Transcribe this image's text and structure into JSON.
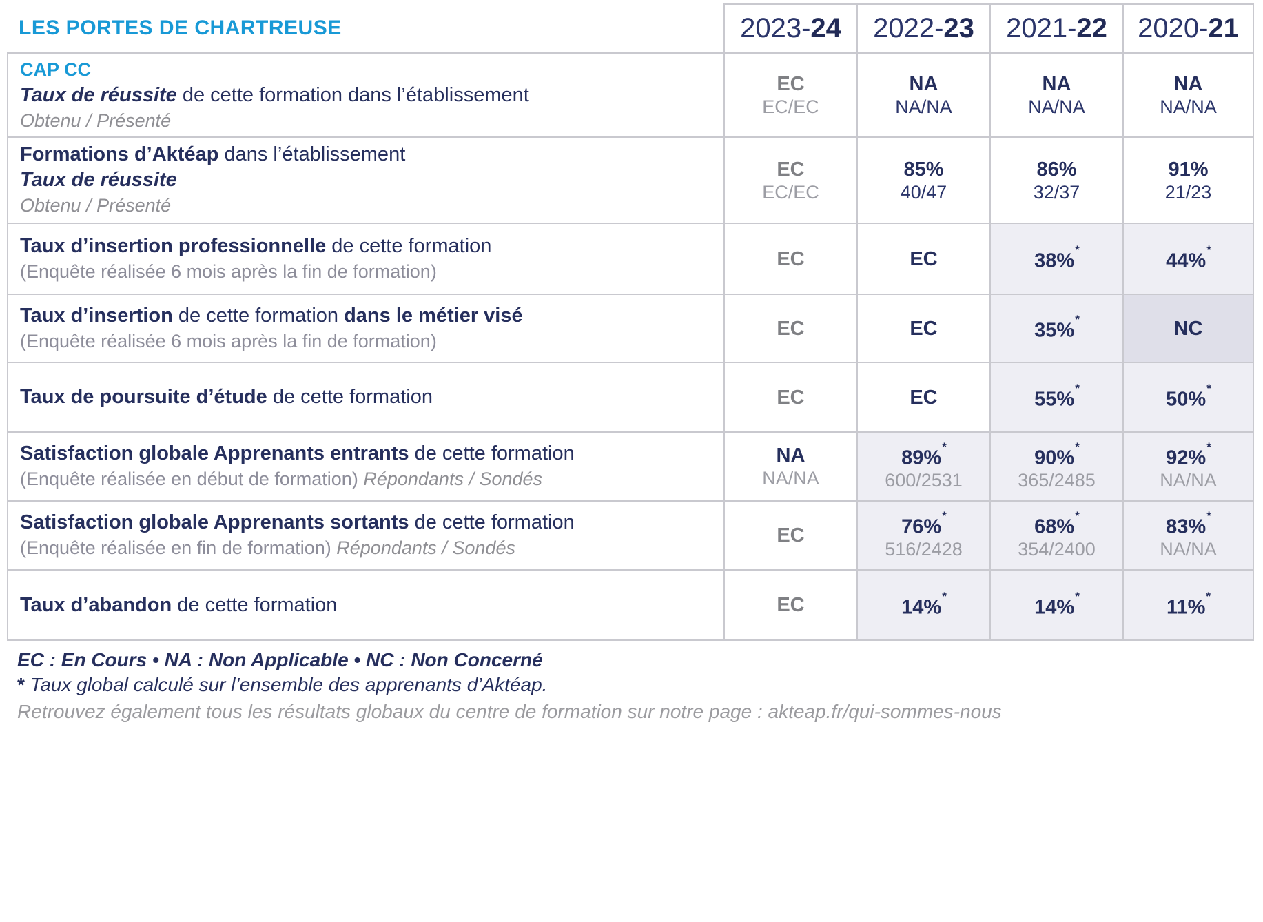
{
  "header": {
    "title": "LES PORTES DE CHARTREUSE",
    "year_columns": [
      {
        "prefix": "2023-",
        "suffix": "24"
      },
      {
        "prefix": "2022-",
        "suffix": "23"
      },
      {
        "prefix": "2021-",
        "suffix": "22"
      },
      {
        "prefix": "2020-",
        "suffix": "21"
      }
    ]
  },
  "rows": [
    {
      "id": "cap-cc-taux-reussite",
      "label_lines": [
        [
          {
            "t": "CAP CC",
            "s": "blue"
          }
        ],
        [
          {
            "t": "Taux de réussite",
            "s": "bi"
          },
          {
            "t": " de cette formation dans l’établissement",
            "s": "r"
          }
        ],
        [
          {
            "t": "Obtenu / Présenté",
            "s": "gi"
          }
        ]
      ],
      "cells": [
        {
          "main": "EC",
          "mc": "gray",
          "sub": "EC/EC",
          "sc": "gray"
        },
        {
          "main": "NA",
          "mc": "navy",
          "sub": "NA/NA",
          "sc": "navy"
        },
        {
          "main": "NA",
          "mc": "navy",
          "sub": "NA/NA",
          "sc": "navy"
        },
        {
          "main": "NA",
          "mc": "navy",
          "sub": "NA/NA",
          "sc": "navy"
        }
      ]
    },
    {
      "id": "formations-akteap-taux-reussite",
      "label_lines": [
        [
          {
            "t": "Formations d’Aktéap",
            "s": "b"
          },
          {
            "t": " dans l’établissement",
            "s": "r"
          }
        ],
        [
          {
            "t": "Taux de réussite",
            "s": "bi"
          }
        ],
        [
          {
            "t": "Obtenu / Présenté",
            "s": "gi"
          }
        ]
      ],
      "cells": [
        {
          "main": "EC",
          "mc": "gray",
          "sub": "EC/EC",
          "sc": "gray"
        },
        {
          "main": "85%",
          "mc": "navy",
          "sub": "40/47",
          "sc": "navy"
        },
        {
          "main": "86%",
          "mc": "navy",
          "sub": "32/37",
          "sc": "navy"
        },
        {
          "main": "91%",
          "mc": "navy",
          "sub": "21/23",
          "sc": "navy"
        }
      ]
    },
    {
      "id": "taux-insertion-professionnelle",
      "label_lines": [
        [
          {
            "t": "Taux d’insertion professionnelle",
            "s": "b"
          },
          {
            "t": " de cette formation",
            "s": "r"
          }
        ],
        [
          {
            "t": "(Enquête réalisée 6 mois après la fin de formation)",
            "s": "g"
          }
        ]
      ],
      "cells": [
        {
          "main": "EC",
          "mc": "gray"
        },
        {
          "main": "EC",
          "mc": "navy"
        },
        {
          "main": "38%",
          "star": true,
          "mc": "navy",
          "bg": "light"
        },
        {
          "main": "44%",
          "star": true,
          "mc": "navy",
          "bg": "light"
        }
      ]
    },
    {
      "id": "taux-insertion-metier-vise",
      "label_lines": [
        [
          {
            "t": "Taux d’insertion",
            "s": "b"
          },
          {
            "t": " de cette formation ",
            "s": "r"
          },
          {
            "t": "dans le métier visé",
            "s": "b"
          }
        ],
        [
          {
            "t": "(Enquête réalisée 6 mois après la fin de formation)",
            "s": "g"
          }
        ]
      ],
      "cells": [
        {
          "main": "EC",
          "mc": "gray"
        },
        {
          "main": "EC",
          "mc": "navy"
        },
        {
          "main": "35%",
          "star": true,
          "mc": "navy",
          "bg": "light"
        },
        {
          "main": "NC",
          "mc": "navy",
          "bg": "dark"
        }
      ]
    },
    {
      "id": "taux-poursuite-etude",
      "label_lines": [
        [
          {
            "t": "Taux de poursuite d’étude",
            "s": "b"
          },
          {
            "t": " de cette formation",
            "s": "r"
          }
        ]
      ],
      "cells": [
        {
          "main": "EC",
          "mc": "gray"
        },
        {
          "main": "EC",
          "mc": "navy"
        },
        {
          "main": "55%",
          "star": true,
          "mc": "navy",
          "bg": "light"
        },
        {
          "main": "50%",
          "star": true,
          "mc": "navy",
          "bg": "light"
        }
      ]
    },
    {
      "id": "satisfaction-apprenants-entrants",
      "label_lines": [
        [
          {
            "t": "Satisfaction globale Apprenants entrants",
            "s": "b"
          },
          {
            "t": " de cette formation",
            "s": "r"
          }
        ],
        [
          {
            "t": "(Enquête réalisée en début de formation) ",
            "s": "g"
          },
          {
            "t": "Répondants / Sondés",
            "s": "gi"
          }
        ]
      ],
      "cells": [
        {
          "main": "NA",
          "mc": "navy",
          "sub": "NA/NA",
          "sc": "gray"
        },
        {
          "main": "89%",
          "star": true,
          "mc": "navy",
          "sub": "600/2531",
          "sc": "gray",
          "bg": "light"
        },
        {
          "main": "90%",
          "star": true,
          "mc": "navy",
          "sub": "365/2485",
          "sc": "gray",
          "bg": "light"
        },
        {
          "main": "92%",
          "star": true,
          "mc": "navy",
          "sub": "NA/NA",
          "sc": "gray",
          "bg": "light"
        }
      ]
    },
    {
      "id": "satisfaction-apprenants-sortants",
      "label_lines": [
        [
          {
            "t": "Satisfaction globale Apprenants sortants",
            "s": "b"
          },
          {
            "t": " de cette formation",
            "s": "r"
          }
        ],
        [
          {
            "t": "(Enquête réalisée en fin de formation) ",
            "s": "g"
          },
          {
            "t": "Répondants / Sondés",
            "s": "gi"
          }
        ]
      ],
      "cells": [
        {
          "main": "EC",
          "mc": "gray"
        },
        {
          "main": "76%",
          "star": true,
          "mc": "navy",
          "sub": "516/2428",
          "sc": "gray",
          "bg": "light"
        },
        {
          "main": "68%",
          "star": true,
          "mc": "navy",
          "sub": "354/2400",
          "sc": "gray",
          "bg": "light"
        },
        {
          "main": "83%",
          "star": true,
          "mc": "navy",
          "sub": "NA/NA",
          "sc": "gray",
          "bg": "light"
        }
      ]
    },
    {
      "id": "taux-abandon",
      "label_lines": [
        [
          {
            "t": "Taux d’abandon",
            "s": "b"
          },
          {
            "t": " de cette formation",
            "s": "r"
          }
        ]
      ],
      "cells": [
        {
          "main": "EC",
          "mc": "gray"
        },
        {
          "main": "14%",
          "star": true,
          "mc": "navy",
          "bg": "light"
        },
        {
          "main": "14%",
          "star": true,
          "mc": "navy",
          "bg": "light"
        },
        {
          "main": "11%",
          "star": true,
          "mc": "navy",
          "bg": "light"
        }
      ]
    }
  ],
  "footer": {
    "legend": "EC : En Cours  •  NA : Non Applicable  •  NC : Non Concerné",
    "star_note_symbol": "*",
    "star_note": " Taux global calculé sur l’ensemble des apprenants d’Aktéap.",
    "link_note": "Retrouvez également tous les résultats globaux du centre de formation sur notre page : akteap.fr/qui-sommes-nous"
  },
  "colors": {
    "accent_blue": "#1899d6",
    "navy": "#262f5d",
    "value_gray": "#7f8084",
    "sub_gray": "#9c9da4",
    "cell_shade_light": "#eeeef4",
    "cell_shade_dark": "#dfdfe9",
    "border": "#c9c9cf"
  }
}
